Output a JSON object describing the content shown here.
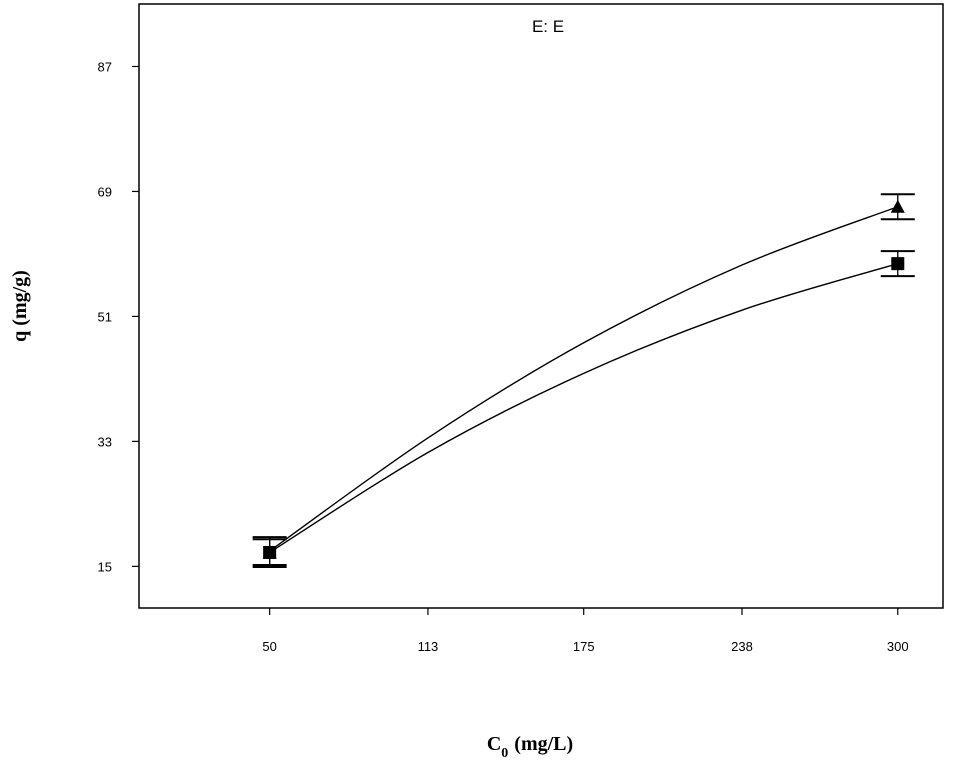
{
  "chart_data": {
    "type": "line",
    "title": "E: E",
    "xlabel": {
      "main": "C",
      "subscript": "0",
      "units": "(mg/L)"
    },
    "ylabel": "q (mg/g)",
    "x_ticks": [
      50,
      113,
      175,
      238,
      300
    ],
    "x_tick_labels": [
      "50",
      "113",
      "175",
      "238",
      "300"
    ],
    "y_ticks": [
      15,
      33,
      51,
      69,
      87
    ],
    "y_tick_labels": [
      "15",
      "33",
      "51",
      "69",
      "87"
    ],
    "xlim": [
      -2,
      318
    ],
    "ylim": [
      9,
      96
    ],
    "grid": false,
    "legend": "none",
    "series": [
      {
        "marker": "triangle",
        "curve": [
          [
            50,
            17.2
          ],
          [
            113,
            33.5
          ],
          [
            175,
            47.2
          ],
          [
            238,
            58.4
          ],
          [
            300,
            66.8
          ]
        ],
        "points": [
          {
            "x": 50,
            "y": 17.0,
            "err_low": 14.9,
            "err_high": 19.2
          },
          {
            "x": 300,
            "y": 66.8,
            "err_low": 65.0,
            "err_high": 68.6
          }
        ]
      },
      {
        "marker": "square",
        "curve": [
          [
            50,
            17.0
          ],
          [
            113,
            31.4
          ],
          [
            175,
            42.8
          ],
          [
            238,
            51.9
          ],
          [
            300,
            58.6
          ]
        ],
        "points": [
          {
            "x": 50,
            "y": 17.0,
            "err_low": 15.2,
            "err_high": 18.9
          },
          {
            "x": 300,
            "y": 58.6,
            "err_low": 56.8,
            "err_high": 60.4
          }
        ]
      }
    ]
  }
}
